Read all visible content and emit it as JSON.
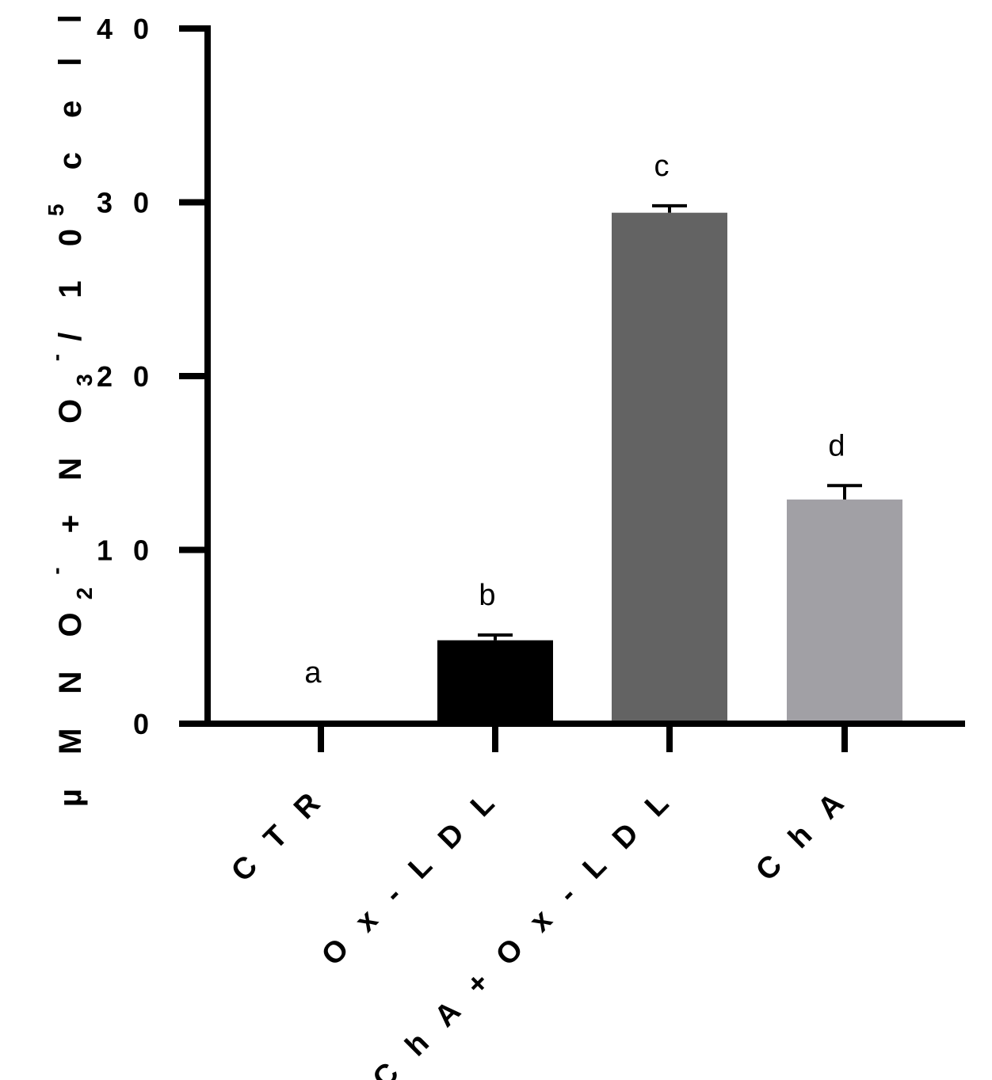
{
  "chart_data": {
    "type": "bar",
    "title": "",
    "xlabel": "",
    "ylabel": {
      "parts": [
        {
          "text": "µ M   N O",
          "style": "normal"
        },
        {
          "text": "2",
          "style": "sub"
        },
        {
          "text": "-",
          "style": "super"
        },
        {
          "text": "  +   N O",
          "style": "normal"
        },
        {
          "text": "3",
          "style": "sub"
        },
        {
          "text": "-",
          "style": "super"
        },
        {
          "text": "/ 1 0",
          "style": "normal"
        },
        {
          "text": "5",
          "style": "super"
        },
        {
          "text": "   c e l l s",
          "style": "normal"
        }
      ]
    },
    "ylim": [
      0,
      40
    ],
    "yticks": [
      0,
      10,
      20,
      30,
      40
    ],
    "ytick_labels": [
      "0",
      "1 0",
      "2 0",
      "3 0",
      "4 0"
    ],
    "categories": [
      "C T R",
      "O x - L D L",
      "C h A  +  O x - L D L",
      "C h A"
    ],
    "values": [
      0,
      4.8,
      29.4,
      12.9
    ],
    "errors": [
      0,
      0.3,
      0.4,
      0.8
    ],
    "significance": [
      "a",
      "b",
      "c",
      "d"
    ],
    "bar_colors": [
      "#000000",
      "#000000",
      "#636363",
      "#a1a0a5"
    ],
    "axis_color": "#000000",
    "grid": false,
    "legend": "none"
  }
}
